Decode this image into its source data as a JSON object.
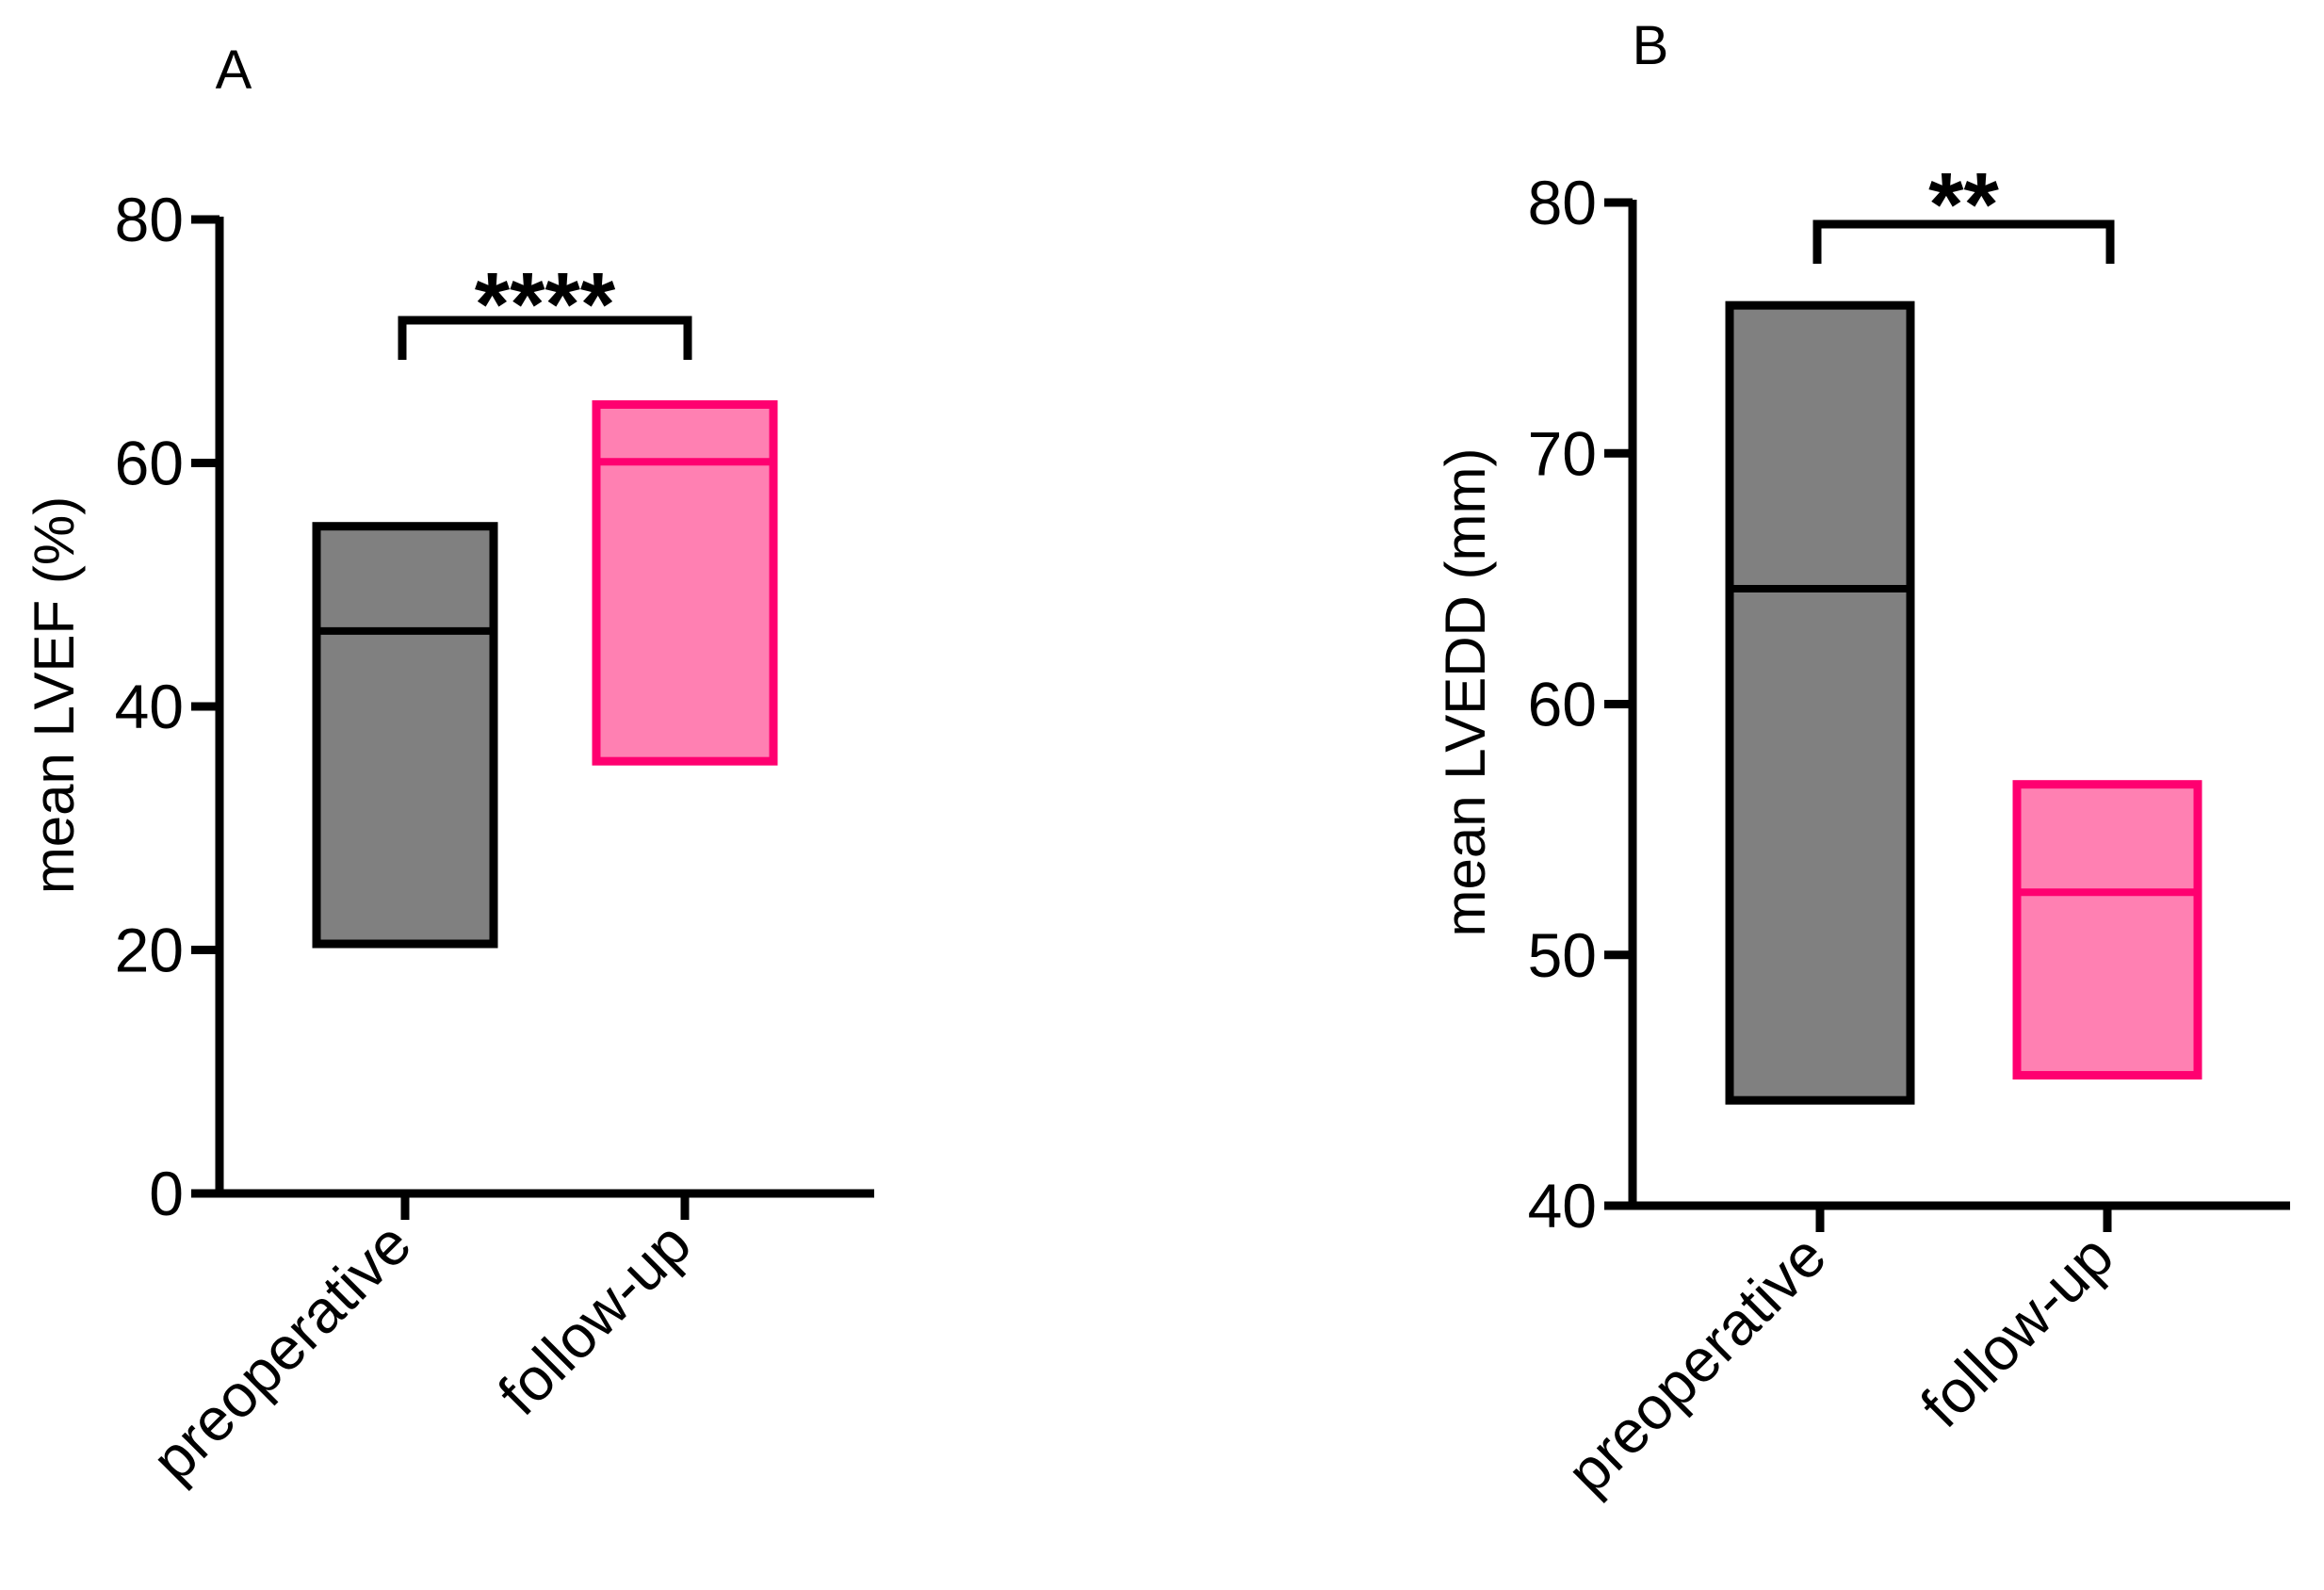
{
  "colors": {
    "preoperative_fill": "#808080",
    "preoperative_stroke": "#000000",
    "followup_fill": "#ff80b2",
    "followup_stroke": "#ff0070"
  },
  "chart_data": [
    {
      "panel": "A",
      "type": "box",
      "ylabel": "mean LVEF (%)",
      "ylim": [
        0,
        80
      ],
      "yticks": [
        "0",
        "20",
        "40",
        "60",
        "80"
      ],
      "categories": [
        "preoperative",
        "follow-up"
      ],
      "boxes": [
        {
          "name": "preoperative",
          "low": 20.5,
          "high": 54.8,
          "mid": 46.2
        },
        {
          "name": "follow-up",
          "low": 35.5,
          "high": 64.8,
          "mid": 60.1
        }
      ],
      "significance": "****"
    },
    {
      "panel": "B",
      "type": "box",
      "ylabel": "mean LVEDD (mm)",
      "ylim": [
        40,
        80
      ],
      "yticks": [
        "40",
        "50",
        "60",
        "70",
        "80"
      ],
      "categories": [
        "preoperative",
        "follow-up"
      ],
      "boxes": [
        {
          "name": "preoperative",
          "low": 44.2,
          "high": 75.9,
          "mid": 64.6
        },
        {
          "name": "follow-up",
          "low": 45.2,
          "high": 56.8,
          "mid": 52.5
        }
      ],
      "significance": "**"
    }
  ]
}
